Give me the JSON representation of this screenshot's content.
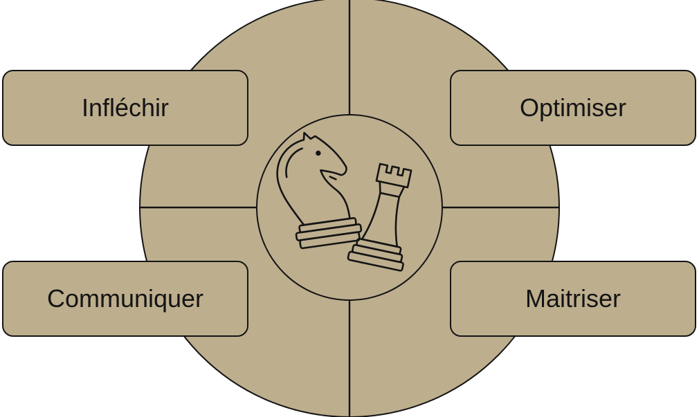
{
  "colors": {
    "fill": "#bdae8e",
    "stroke": "#141414",
    "background": "#ffffff"
  },
  "center_icon": "chess-knight-and-rook-icon",
  "quadrants": [
    {
      "position": "top-left",
      "label": "Infléchir"
    },
    {
      "position": "top-right",
      "label": "Optimiser"
    },
    {
      "position": "bottom-left",
      "label": "Communiquer"
    },
    {
      "position": "bottom-right",
      "label": "Maitriser"
    }
  ]
}
